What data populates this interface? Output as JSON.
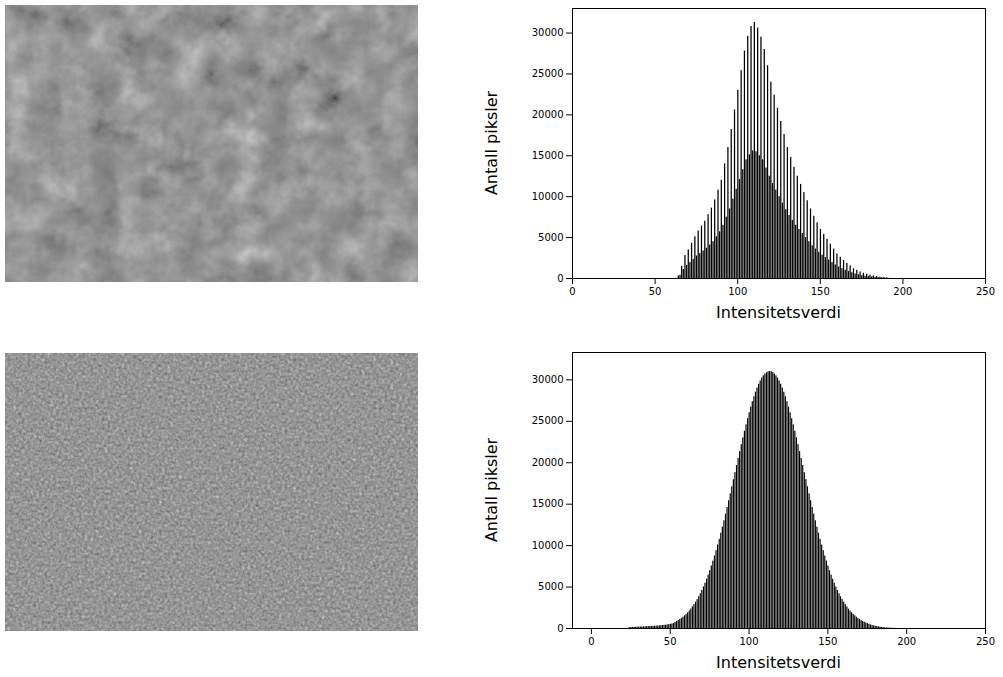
{
  "chart_data": [
    {
      "type": "histogram",
      "xlabel": "Intensitetsverdi",
      "ylabel": "Antall piksler",
      "color": "#000000",
      "xlim": [
        0,
        250
      ],
      "xticks": [
        0,
        50,
        100,
        150,
        200,
        250
      ],
      "ylim": [
        0,
        33000
      ],
      "yticks": [
        0,
        5000,
        10000,
        15000,
        20000,
        25000,
        30000
      ],
      "bins": [
        64,
        65,
        66,
        67,
        68,
        69,
        70,
        71,
        72,
        73,
        74,
        75,
        76,
        77,
        78,
        79,
        80,
        81,
        82,
        83,
        84,
        85,
        86,
        87,
        88,
        89,
        90,
        91,
        92,
        93,
        94,
        95,
        96,
        97,
        98,
        99,
        100,
        101,
        102,
        103,
        104,
        105,
        106,
        107,
        108,
        109,
        110,
        111,
        112,
        113,
        114,
        115,
        116,
        117,
        118,
        119,
        120,
        121,
        122,
        123,
        124,
        125,
        126,
        127,
        128,
        129,
        130,
        131,
        132,
        133,
        134,
        135,
        136,
        137,
        138,
        139,
        140,
        141,
        142,
        143,
        144,
        145,
        146,
        147,
        148,
        149,
        150,
        151,
        152,
        153,
        154,
        155,
        156,
        157,
        158,
        159,
        160,
        161,
        162,
        163,
        164,
        165,
        166,
        167,
        168,
        169,
        170,
        171,
        172,
        173,
        174,
        175,
        176,
        177,
        178,
        179,
        180,
        181,
        182,
        183,
        184,
        185,
        186,
        187,
        188,
        189,
        190,
        191,
        192
      ],
      "values": [
        300,
        400,
        1500,
        1100,
        2800,
        1600,
        3500,
        1950,
        4300,
        2350,
        5100,
        2750,
        5800,
        3050,
        6400,
        3350,
        7000,
        3700,
        7800,
        4100,
        8600,
        4500,
        9600,
        5100,
        10800,
        5700,
        12000,
        6500,
        14000,
        7500,
        16000,
        8500,
        18200,
        9700,
        20600,
        10900,
        23000,
        12100,
        25400,
        13300,
        27800,
        14500,
        29600,
        15100,
        30800,
        15600,
        31300,
        15500,
        30600,
        15000,
        29500,
        14500,
        28000,
        13500,
        26000,
        12500,
        24000,
        11600,
        22400,
        10800,
        20800,
        10000,
        19200,
        9200,
        17600,
        8400,
        16000,
        7700,
        14800,
        7100,
        13600,
        6500,
        12500,
        6000,
        11500,
        5500,
        10500,
        5000,
        9500,
        4500,
        8500,
        4000,
        7600,
        3600,
        6800,
        3200,
        6000,
        2850,
        5400,
        2550,
        4800,
        2250,
        4200,
        1950,
        3600,
        1650,
        3000,
        1400,
        2600,
        1200,
        2200,
        1000,
        1850,
        850,
        1550,
        700,
        1200,
        550,
        1000,
        450,
        800,
        350,
        640,
        290,
        520,
        230,
        400,
        180,
        320,
        140,
        240,
        100,
        170,
        70,
        120,
        50,
        80,
        30
      ]
    },
    {
      "type": "histogram",
      "xlabel": "Intensitetsverdi",
      "ylabel": "Antall piksler",
      "color": "#000000",
      "xlim": [
        -12,
        250
      ],
      "xticks": [
        0,
        50,
        100,
        150,
        200,
        250
      ],
      "ylim": [
        0,
        33300
      ],
      "yticks": [
        0,
        5000,
        10000,
        15000,
        20000,
        25000,
        30000
      ],
      "bins": [
        24,
        25,
        26,
        27,
        28,
        29,
        30,
        31,
        32,
        33,
        34,
        35,
        36,
        37,
        38,
        39,
        40,
        41,
        42,
        43,
        44,
        45,
        46,
        47,
        48,
        49,
        50,
        51,
        52,
        53,
        54,
        55,
        56,
        57,
        58,
        59,
        60,
        61,
        62,
        63,
        64,
        65,
        66,
        67,
        68,
        69,
        70,
        71,
        72,
        73,
        74,
        75,
        76,
        77,
        78,
        79,
        80,
        81,
        82,
        83,
        84,
        85,
        86,
        87,
        88,
        89,
        90,
        91,
        92,
        93,
        94,
        95,
        96,
        97,
        98,
        99,
        100,
        101,
        102,
        103,
        104,
        105,
        106,
        107,
        108,
        109,
        110,
        111,
        112,
        113,
        114,
        115,
        116,
        117,
        118,
        119,
        120,
        121,
        122,
        123,
        124,
        125,
        126,
        127,
        128,
        129,
        130,
        131,
        132,
        133,
        134,
        135,
        136,
        137,
        138,
        139,
        140,
        141,
        142,
        143,
        144,
        145,
        146,
        147,
        148,
        149,
        150,
        151,
        152,
        153,
        154,
        155,
        156,
        157,
        158,
        159,
        160,
        161,
        162,
        163,
        164,
        165,
        166,
        167,
        168,
        169,
        170,
        171,
        172,
        173,
        174,
        175,
        176,
        177,
        178,
        179,
        180,
        181,
        182,
        183,
        184,
        185,
        186,
        187,
        188,
        189,
        190,
        191,
        192,
        193,
        194,
        195,
        196
      ],
      "values": [
        100,
        120,
        130,
        140,
        150,
        160,
        170,
        180,
        190,
        200,
        210,
        220,
        230,
        240,
        250,
        260,
        270,
        280,
        300,
        320,
        340,
        360,
        380,
        400,
        430,
        460,
        500,
        540,
        600,
        750,
        850,
        960,
        1080,
        1210,
        1360,
        1530,
        1700,
        1900,
        2110,
        2340,
        2600,
        2870,
        3170,
        3480,
        3830,
        4190,
        4590,
        5010,
        5460,
        5940,
        6440,
        6980,
        7540,
        8130,
        8750,
        9390,
        10070,
        10760,
        11490,
        12230,
        13000,
        13790,
        14600,
        15420,
        16250,
        17100,
        17950,
        18800,
        19660,
        20510,
        21350,
        22180,
        23010,
        23800,
        24570,
        25310,
        26030,
        26720,
        27360,
        27960,
        28510,
        29020,
        29470,
        29870,
        30210,
        30490,
        30710,
        30870,
        30970,
        31000,
        30970,
        30870,
        30710,
        30490,
        30210,
        29870,
        29470,
        29020,
        28510,
        27960,
        27360,
        26720,
        26030,
        25310,
        24570,
        23800,
        23010,
        22180,
        21350,
        20510,
        19660,
        18800,
        17950,
        17100,
        16250,
        15420,
        14600,
        13790,
        13000,
        12230,
        11490,
        10760,
        10070,
        9390,
        8750,
        8130,
        7540,
        6980,
        6440,
        5940,
        5460,
        5010,
        4590,
        4190,
        3830,
        3480,
        3170,
        2870,
        2600,
        2340,
        2110,
        1900,
        1700,
        1530,
        1360,
        1210,
        1080,
        960,
        850,
        750,
        660,
        580,
        500,
        430,
        370,
        320,
        270,
        230,
        190,
        160,
        130,
        110,
        90,
        70,
        55,
        40,
        30,
        20,
        15,
        10,
        6,
        3
      ]
    }
  ]
}
